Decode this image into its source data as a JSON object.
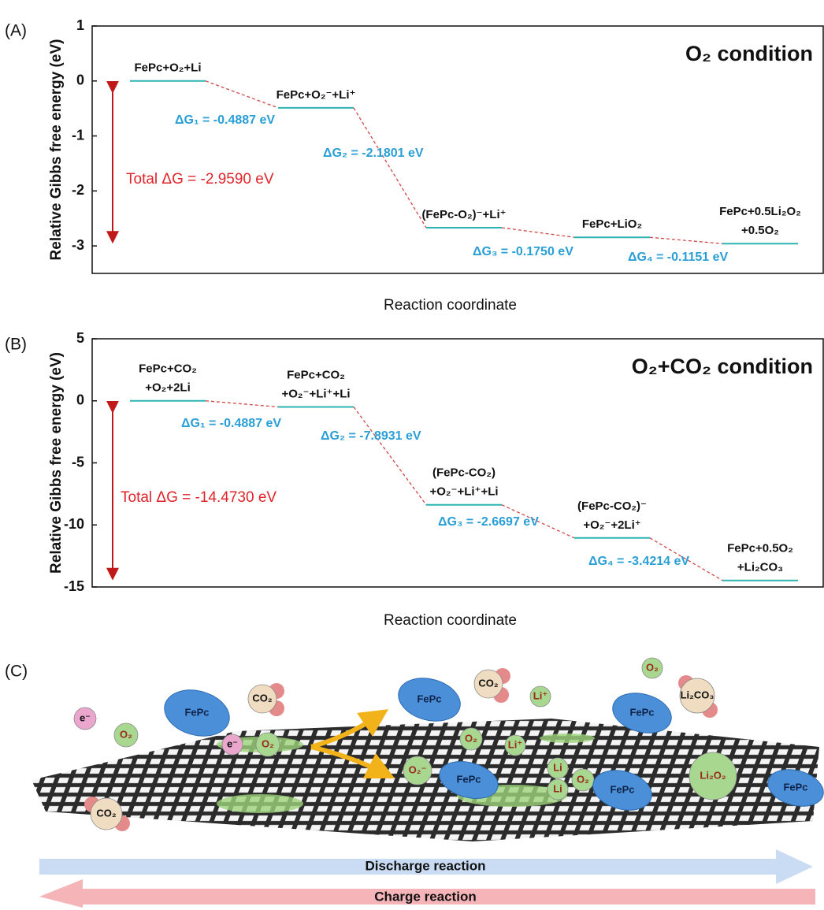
{
  "chart_data": [
    {
      "type": "energy",
      "panel_label": "(A)",
      "title": "O₂ condition",
      "x_label": "Reaction coordinate",
      "y_label": "Relative Gibbs free energy (eV)",
      "categories": [
        [
          "FePc+O₂+Li"
        ],
        [
          "FePc+O₂⁻+Li⁺"
        ],
        [
          "(FePc-O₂)⁻+Li⁺"
        ],
        [
          "FePc+LiO₂"
        ],
        [
          "FePc+0.5Li₂O₂",
          "+0.5O₂"
        ]
      ],
      "values": [
        0,
        -0.4887,
        -2.6688,
        -2.8438,
        -2.9589
      ],
      "annotations": [
        "ΔG₁ = -0.4887 eV",
        "ΔG₂ = -2.1801 eV",
        "ΔG₃ = -0.1750 eV",
        "ΔG₄ = -0.1151 eV"
      ],
      "total": "Total ΔG = -2.9590 eV",
      "ylim": [
        -3.5,
        1
      ],
      "yticks": [
        -3,
        -2,
        -1,
        0,
        1
      ],
      "level_color": "#2bb3b3",
      "connector_color": "#d04848",
      "delta_color": "#2a9fd6",
      "total_color": "#e0242a"
    },
    {
      "type": "energy",
      "panel_label": "(B)",
      "title": "O₂+CO₂ condition",
      "x_label": "Reaction coordinate",
      "y_label": "Relative Gibbs free energy (eV)",
      "categories": [
        [
          "FePc+CO₂",
          "+O₂+2Li"
        ],
        [
          "FePc+CO₂",
          "+O₂⁻+Li⁺+Li"
        ],
        [
          "(FePc-CO₂)",
          "+O₂⁻+Li⁺+Li"
        ],
        [
          "(FePc-CO₂)⁻",
          "+O₂⁻+2Li⁺"
        ],
        [
          "FePc+0.5O₂",
          "+Li₂CO₃"
        ]
      ],
      "values": [
        0,
        -0.4887,
        -8.3818,
        -11.0515,
        -14.4729
      ],
      "annotations": [
        "ΔG₁ = -0.4887 eV",
        "ΔG₂ = -7.8931 eV",
        "ΔG₃ = -2.6697 eV",
        "ΔG₄ = -3.4214 eV"
      ],
      "total": "Total ΔG = -14.4730 eV",
      "ylim": [
        -15,
        5
      ],
      "yticks": [
        -15,
        -10,
        -5,
        0,
        5
      ],
      "level_color": "#2bb3b3",
      "connector_color": "#d04848",
      "delta_color": "#2a9fd6",
      "total_color": "#e0242a"
    }
  ],
  "panel_c": {
    "panel_label": "(C)",
    "items": [
      "e⁻",
      "O₂",
      "FePc",
      "CO₂",
      "CO₂",
      "e⁻",
      "O₂",
      "FePc",
      "CO₂",
      "Li⁺",
      "O₂",
      "Li⁺",
      "O₂",
      "FePc",
      "Li₂CO₃",
      "O₂⁻",
      "FePc",
      "Li",
      "Li",
      "O₂",
      "FePc",
      "Li₂O₂",
      "FePc"
    ],
    "discharge": "Discharge reaction",
    "charge": "Charge reaction"
  }
}
